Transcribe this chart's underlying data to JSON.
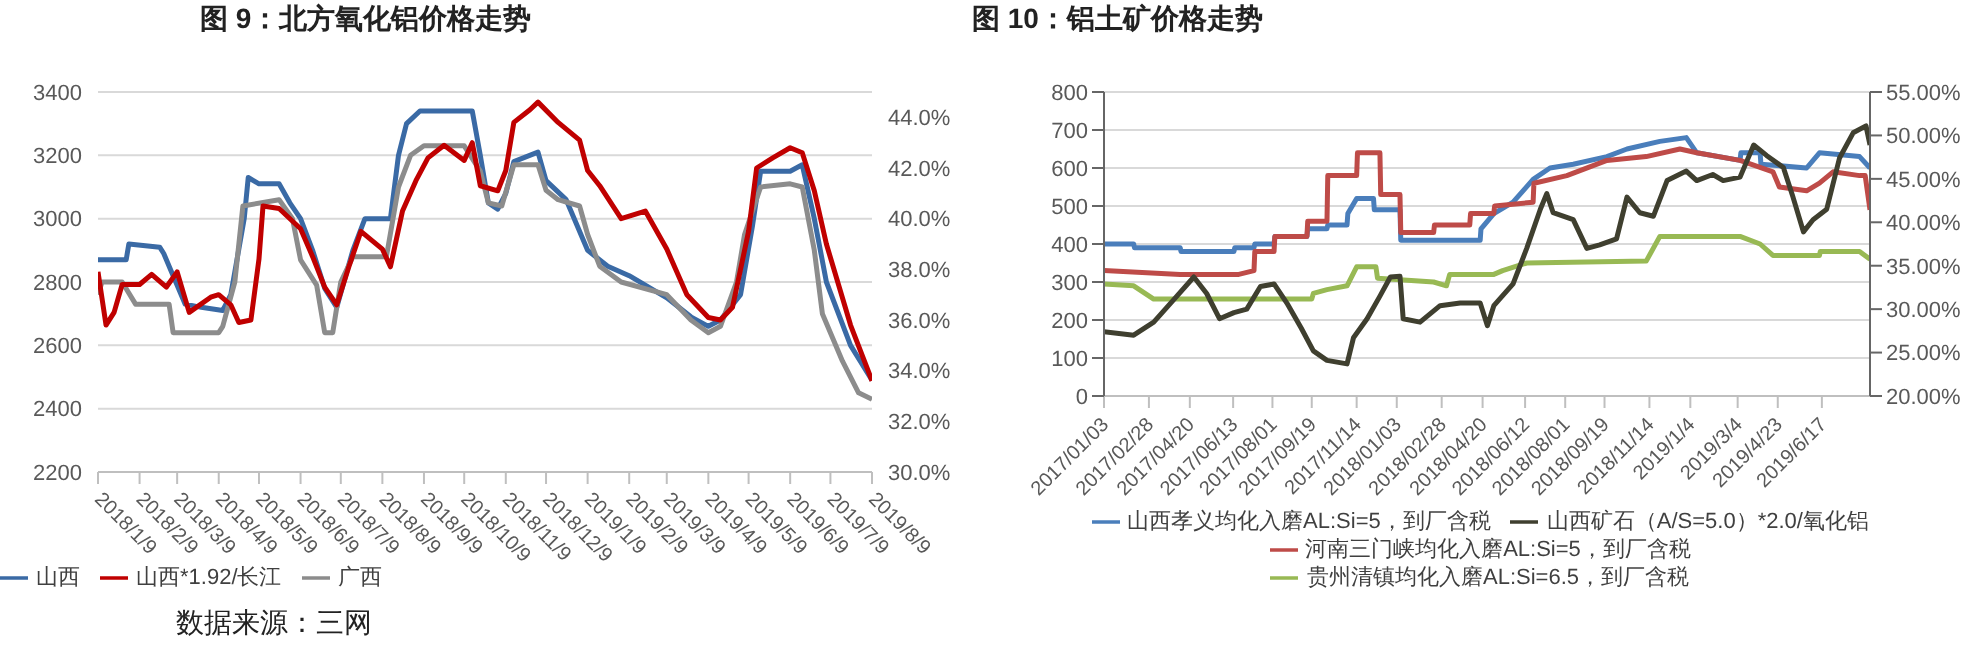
{
  "chart_data": [
    {
      "type": "line",
      "title": "图 9：北方氧化铝价格走势",
      "xlim": [
        "2018-01-09",
        "2019-08-09"
      ],
      "xticks": [
        {
          "value": "2018-01-09",
          "label": "2018/1/9"
        },
        {
          "value": "2018-02-09",
          "label": "2018/2/9"
        },
        {
          "value": "2018-03-09",
          "label": "2018/3/9"
        },
        {
          "value": "2018-04-09",
          "label": "2018/4/9"
        },
        {
          "value": "2018-05-09",
          "label": "2018/5/9"
        },
        {
          "value": "2018-06-09",
          "label": "2018/6/9"
        },
        {
          "value": "2018-07-09",
          "label": "2018/7/9"
        },
        {
          "value": "2018-08-09",
          "label": "2018/8/9"
        },
        {
          "value": "2018-09-09",
          "label": "2018/9/9"
        },
        {
          "value": "2018-10-09",
          "label": "2018/10/9"
        },
        {
          "value": "2018-11-09",
          "label": "2018/11/9"
        },
        {
          "value": "2018-12-09",
          "label": "2018/12/9"
        },
        {
          "value": "2019-01-09",
          "label": "2019/1/9"
        },
        {
          "value": "2019-02-09",
          "label": "2019/2/9"
        },
        {
          "value": "2019-03-09",
          "label": "2019/3/9"
        },
        {
          "value": "2019-04-09",
          "label": "2019/4/9"
        },
        {
          "value": "2019-05-09",
          "label": "2019/5/9"
        },
        {
          "value": "2019-06-09",
          "label": "2019/6/9"
        },
        {
          "value": "2019-07-09",
          "label": "2019/7/9"
        },
        {
          "value": "2019-08-09",
          "label": "2019/8/9"
        }
      ],
      "ylim": [
        2200,
        3400
      ],
      "yticks": [
        2200,
        2400,
        2600,
        2800,
        3000,
        3200,
        3400
      ],
      "y2lim": [
        30,
        45
      ],
      "y2ticks": [
        {
          "value": 30,
          "label": "30.0%"
        },
        {
          "value": 32,
          "label": "32.0%"
        },
        {
          "value": 34,
          "label": "34.0%"
        },
        {
          "value": 36,
          "label": "36.0%"
        },
        {
          "value": 38,
          "label": "38.0%"
        },
        {
          "value": 40,
          "label": "40.0%"
        },
        {
          "value": 42,
          "label": "42.0%"
        },
        {
          "value": 44,
          "label": "44.0%"
        }
      ],
      "grid": "y",
      "legend": "bottom",
      "annotations": [
        "数据来源：三网"
      ],
      "series": [
        {
          "name": "山西",
          "color": "#3a6aa5",
          "x": [
            "2018-01-09",
            "2018-01-30",
            "2018-02-01",
            "2018-02-24",
            "2018-02-27",
            "2018-03-15",
            "2018-03-27",
            "2018-04-12",
            "2018-04-18",
            "2018-04-28",
            "2018-05-01",
            "2018-05-09",
            "2018-05-24",
            "2018-06-01",
            "2018-06-09",
            "2018-06-18",
            "2018-06-27",
            "2018-07-06",
            "2018-07-18",
            "2018-07-27",
            "2018-08-15",
            "2018-08-21",
            "2018-08-27",
            "2018-09-06",
            "2018-10-15",
            "2018-10-21",
            "2018-10-27",
            "2018-11-03",
            "2018-11-09",
            "2018-11-15",
            "2018-12-03",
            "2018-12-09",
            "2018-12-24",
            "2019-01-09",
            "2019-01-24",
            "2019-02-09",
            "2019-03-09",
            "2019-03-27",
            "2019-04-09",
            "2019-04-18",
            "2019-05-03",
            "2019-05-12",
            "2019-05-18",
            "2019-06-09",
            "2019-06-18",
            "2019-06-27",
            "2019-07-06",
            "2019-07-24",
            "2019-08-09"
          ],
          "values": [
            2870,
            2870,
            2920,
            2910,
            2890,
            2730,
            2720,
            2710,
            2760,
            3000,
            3130,
            3110,
            3110,
            3050,
            3000,
            2900,
            2780,
            2720,
            2900,
            3000,
            3000,
            3200,
            3300,
            3340,
            3340,
            3200,
            3050,
            3030,
            3080,
            3180,
            3210,
            3120,
            3060,
            2900,
            2850,
            2820,
            2750,
            2690,
            2660,
            2680,
            2760,
            2980,
            3150,
            3150,
            3170,
            3000,
            2800,
            2600,
            2490
          ]
        },
        {
          "name": "广西",
          "color": "#8c8c8c",
          "x": [
            "2018-01-09",
            "2018-01-12",
            "2018-01-27",
            "2018-02-06",
            "2018-03-03",
            "2018-03-06",
            "2018-04-09",
            "2018-04-12",
            "2018-04-21",
            "2018-04-27",
            "2018-05-24",
            "2018-06-03",
            "2018-06-09",
            "2018-06-21",
            "2018-06-27",
            "2018-07-03",
            "2018-07-09",
            "2018-07-18",
            "2018-08-12",
            "2018-08-21",
            "2018-08-30",
            "2018-09-09",
            "2018-10-09",
            "2018-10-21",
            "2018-10-27",
            "2018-11-06",
            "2018-11-15",
            "2018-12-03",
            "2018-12-09",
            "2018-12-18",
            "2019-01-03",
            "2019-01-09",
            "2019-01-18",
            "2019-02-03",
            "2019-03-09",
            "2019-03-27",
            "2019-04-09",
            "2019-04-18",
            "2019-04-30",
            "2019-05-06",
            "2019-05-18",
            "2019-06-09",
            "2019-06-18",
            "2019-06-27",
            "2019-07-03",
            "2019-07-18",
            "2019-07-30",
            "2019-08-09"
          ],
          "values": [
            2760,
            2800,
            2800,
            2730,
            2730,
            2640,
            2640,
            2660,
            2800,
            3040,
            3060,
            3000,
            2870,
            2790,
            2640,
            2640,
            2800,
            2880,
            2880,
            3100,
            3200,
            3230,
            3230,
            3150,
            3050,
            3040,
            3170,
            3170,
            3090,
            3060,
            3040,
            2950,
            2850,
            2800,
            2760,
            2680,
            2640,
            2660,
            2800,
            2950,
            3100,
            3110,
            3100,
            2900,
            2700,
            2550,
            2450,
            2430
          ]
        },
        {
          "name": "山西*1.92/长江",
          "color": "#c00000",
          "axis": "y2",
          "x": [
            "2018-01-09",
            "2018-01-15",
            "2018-01-21",
            "2018-01-27",
            "2018-02-09",
            "2018-02-18",
            "2018-03-01",
            "2018-03-09",
            "2018-03-18",
            "2018-04-03",
            "2018-04-09",
            "2018-04-18",
            "2018-04-24",
            "2018-05-03",
            "2018-05-09",
            "2018-05-12",
            "2018-05-24",
            "2018-06-09",
            "2018-06-18",
            "2018-06-27",
            "2018-07-06",
            "2018-07-15",
            "2018-07-24",
            "2018-08-09",
            "2018-08-15",
            "2018-08-24",
            "2018-09-03",
            "2018-09-12",
            "2018-09-24",
            "2018-10-09",
            "2018-10-15",
            "2018-10-21",
            "2018-11-03",
            "2018-11-09",
            "2018-11-15",
            "2018-11-27",
            "2018-12-03",
            "2018-12-18",
            "2019-01-03",
            "2019-01-09",
            "2019-01-18",
            "2019-02-03",
            "2019-02-21",
            "2019-03-09",
            "2019-03-24",
            "2019-04-09",
            "2019-04-18",
            "2019-04-27",
            "2019-05-09",
            "2019-05-15",
            "2019-05-27",
            "2019-06-09",
            "2019-06-18",
            "2019-06-27",
            "2019-07-06",
            "2019-07-24",
            "2019-08-09"
          ],
          "values": [
            37.9,
            35.8,
            36.3,
            37.4,
            37.4,
            37.8,
            37.3,
            37.9,
            36.3,
            36.9,
            37.0,
            36.6,
            35.9,
            36.0,
            38.4,
            40.5,
            40.4,
            39.6,
            38.5,
            37.3,
            36.6,
            38.1,
            39.5,
            38.8,
            38.1,
            40.3,
            41.5,
            42.4,
            42.9,
            42.3,
            43.0,
            41.3,
            41.1,
            41.9,
            43.8,
            44.3,
            44.6,
            43.8,
            43.1,
            41.9,
            41.3,
            40.0,
            40.3,
            38.8,
            37.0,
            36.1,
            36.0,
            36.5,
            39.5,
            42.0,
            42.4,
            42.8,
            42.6,
            41.1,
            39.0,
            35.8,
            33.6
          ]
        }
      ]
    },
    {
      "type": "line",
      "title": "图 10：铝土矿价格走势",
      "xlim": [
        "2017-01-03",
        "2019-08-16"
      ],
      "xticks": [
        {
          "value": "2017-01-03",
          "label": "2017/01/03"
        },
        {
          "value": "2017-02-28",
          "label": "2017/02/28"
        },
        {
          "value": "2017-04-20",
          "label": "2017/04/20"
        },
        {
          "value": "2017-06-13",
          "label": "2017/06/13"
        },
        {
          "value": "2017-08-01",
          "label": "2017/08/01"
        },
        {
          "value": "2017-09-19",
          "label": "2017/09/19"
        },
        {
          "value": "2017-11-14",
          "label": "2017/11/14"
        },
        {
          "value": "2018-01-03",
          "label": "2018/01/03"
        },
        {
          "value": "2018-02-28",
          "label": "2018/02/28"
        },
        {
          "value": "2018-04-20",
          "label": "2018/04/20"
        },
        {
          "value": "2018-06-12",
          "label": "2018/06/12"
        },
        {
          "value": "2018-08-01",
          "label": "2018/08/01"
        },
        {
          "value": "2018-09-19",
          "label": "2018/09/19"
        },
        {
          "value": "2018-11-14",
          "label": "2018/11/14"
        },
        {
          "value": "2019-01-04",
          "label": "2019/1/4"
        },
        {
          "value": "2019-03-04",
          "label": "2019/3/4"
        },
        {
          "value": "2019-04-23",
          "label": "2019/4/23"
        },
        {
          "value": "2019-06-17",
          "label": "2019/6/17"
        }
      ],
      "ylim": [
        0,
        800
      ],
      "yticks": [
        0,
        100,
        200,
        300,
        400,
        500,
        600,
        700,
        800
      ],
      "y2lim": [
        20,
        55
      ],
      "y2ticks": [
        {
          "value": 20,
          "label": "20.00%"
        },
        {
          "value": 25,
          "label": "25.00%"
        },
        {
          "value": 30,
          "label": "30.00%"
        },
        {
          "value": 35,
          "label": "35.00%"
        },
        {
          "value": 40,
          "label": "40.00%"
        },
        {
          "value": 45,
          "label": "45.00%"
        },
        {
          "value": 50,
          "label": "50.00%"
        },
        {
          "value": 55,
          "label": "55.00%"
        }
      ],
      "grid": "y",
      "legend": "bottom",
      "series": [
        {
          "name": "山西孝义均化入磨AL:Si=5，到厂含税",
          "color": "#4a7ebb",
          "x": [
            "2017-01-03",
            "2017-02-09",
            "2017-02-10",
            "2017-04-08",
            "2017-04-09",
            "2017-06-14",
            "2017-06-15",
            "2017-07-09",
            "2017-07-10",
            "2017-08-03",
            "2017-08-04",
            "2017-09-13",
            "2017-09-14",
            "2017-10-08",
            "2017-10-09",
            "2017-11-02",
            "2017-11-03",
            "2017-11-14",
            "2017-12-05",
            "2017-12-06",
            "2018-01-07",
            "2018-01-08",
            "2018-04-17",
            "2018-04-18",
            "2018-05-04",
            "2018-05-28",
            "2018-06-22",
            "2018-07-13",
            "2018-08-11",
            "2018-09-22",
            "2018-10-17",
            "2018-11-27",
            "2018-12-30",
            "2019-01-12",
            "2019-03-07",
            "2019-03-08",
            "2019-04-01",
            "2019-04-02",
            "2019-05-29",
            "2019-06-14",
            "2019-08-03",
            "2019-08-16"
          ],
          "values": [
            400,
            400,
            390,
            390,
            380,
            380,
            390,
            390,
            400,
            400,
            420,
            420,
            440,
            440,
            450,
            450,
            480,
            520,
            520,
            490,
            490,
            410,
            410,
            440,
            480,
            510,
            570,
            600,
            610,
            630,
            650,
            670,
            680,
            640,
            620,
            640,
            640,
            610,
            600,
            640,
            630,
            600
          ]
        },
        {
          "name": "河南三门峡均化入磨AL:Si=5，到厂含税",
          "color": "#be4b48",
          "x": [
            "2017-01-03",
            "2017-04-08",
            "2017-06-20",
            "2017-07-09",
            "2017-07-10",
            "2017-08-03",
            "2017-08-04",
            "2017-09-13",
            "2017-09-14",
            "2017-10-08",
            "2017-10-09",
            "2017-11-14",
            "2017-11-15",
            "2017-12-13",
            "2017-12-14",
            "2018-01-07",
            "2018-01-08",
            "2018-02-18",
            "2018-02-19",
            "2018-04-04",
            "2018-04-05",
            "2018-05-04",
            "2018-05-05",
            "2018-06-22",
            "2018-06-23",
            "2018-08-03",
            "2018-09-22",
            "2018-11-10",
            "2018-12-22",
            "2019-01-12",
            "2019-03-07",
            "2019-04-17",
            "2019-04-25",
            "2019-05-29",
            "2019-06-14",
            "2019-07-01",
            "2019-08-03",
            "2019-08-10",
            "2019-08-16"
          ],
          "values": [
            330,
            320,
            320,
            330,
            380,
            380,
            420,
            420,
            460,
            460,
            580,
            580,
            640,
            640,
            530,
            530,
            430,
            430,
            450,
            450,
            480,
            480,
            500,
            510,
            560,
            580,
            620,
            630,
            650,
            640,
            620,
            590,
            550,
            540,
            560,
            590,
            580,
            580,
            490
          ]
        },
        {
          "name": "贵州清镇均化入磨AL:Si=6.5，到厂含税",
          "color": "#98b954",
          "x": [
            "2017-01-03",
            "2017-02-09",
            "2017-03-06",
            "2017-09-19",
            "2017-09-21",
            "2017-10-08",
            "2017-11-02",
            "2017-11-14",
            "2017-12-08",
            "2017-12-10",
            "2018-02-18",
            "2018-03-06",
            "2018-03-10",
            "2018-05-04",
            "2018-05-15",
            "2018-06-14",
            "2018-11-10",
            "2018-11-27",
            "2019-03-07",
            "2019-04-01",
            "2019-04-17",
            "2019-06-14",
            "2019-06-15",
            "2019-08-03",
            "2019-08-16"
          ],
          "values": [
            295,
            290,
            255,
            255,
            270,
            280,
            290,
            340,
            340,
            310,
            300,
            290,
            320,
            320,
            330,
            350,
            355,
            420,
            420,
            400,
            370,
            370,
            380,
            380,
            360
          ]
        },
        {
          "name": "山西矿石（A/S=5.0）*2.0/氧化铝",
          "color": "#3f3f2f",
          "axis": "y2",
          "x": [
            "2017-01-03",
            "2017-02-09",
            "2017-03-06",
            "2017-03-31",
            "2017-04-25",
            "2017-05-11",
            "2017-05-27",
            "2017-06-14",
            "2017-06-30",
            "2017-07-17",
            "2017-08-03",
            "2017-08-19",
            "2017-09-06",
            "2017-09-21",
            "2017-10-08",
            "2017-11-02",
            "2017-11-10",
            "2017-11-27",
            "2017-12-13",
            "2017-12-26",
            "2018-01-07",
            "2018-01-11",
            "2018-02-01",
            "2018-02-26",
            "2018-03-23",
            "2018-04-17",
            "2018-04-26",
            "2018-05-04",
            "2018-05-28",
            "2018-06-14",
            "2018-07-01",
            "2018-07-09",
            "2018-07-17",
            "2018-08-11",
            "2018-08-28",
            "2018-09-13",
            "2018-10-04",
            "2018-10-17",
            "2018-11-02",
            "2018-11-19",
            "2018-12-06",
            "2018-12-30",
            "2019-01-12",
            "2019-02-01",
            "2019-02-14",
            "2019-03-07",
            "2019-03-24",
            "2019-04-09",
            "2019-04-30",
            "2019-05-12",
            "2019-05-25",
            "2019-06-06",
            "2019-06-23",
            "2019-07-09",
            "2019-07-26",
            "2019-08-11",
            "2019-08-16"
          ],
          "values": [
            27.4,
            27.0,
            28.5,
            31.1,
            33.7,
            31.8,
            28.9,
            29.6,
            30.0,
            32.6,
            32.9,
            30.7,
            27.8,
            25.2,
            24.1,
            23.7,
            26.7,
            28.9,
            31.5,
            33.7,
            33.8,
            28.9,
            28.5,
            30.4,
            30.7,
            30.7,
            28.1,
            30.4,
            32.9,
            37.0,
            41.5,
            43.3,
            41.1,
            40.3,
            37.0,
            37.4,
            38.1,
            42.9,
            41.1,
            40.7,
            44.8,
            45.9,
            44.8,
            45.5,
            44.8,
            45.2,
            48.9,
            47.7,
            46.3,
            42.9,
            38.9,
            40.3,
            41.5,
            47.4,
            50.3,
            51.1,
            48.9
          ]
        }
      ]
    }
  ]
}
